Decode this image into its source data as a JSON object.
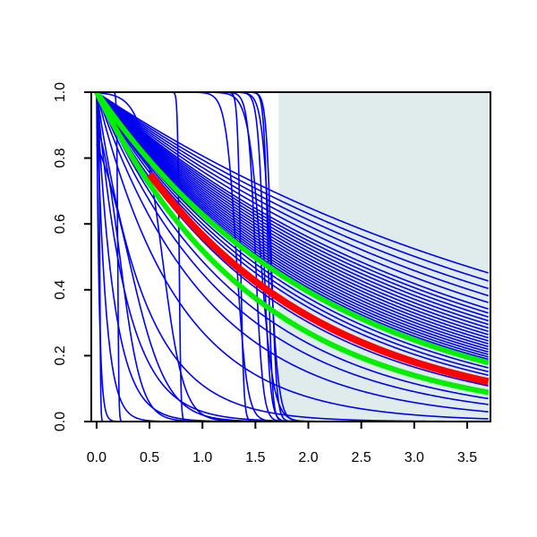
{
  "chart_data": {
    "type": "line",
    "title": "",
    "xlabel": "",
    "ylabel": "",
    "xlim": [
      -0.05,
      3.72
    ],
    "ylim": [
      0,
      1
    ],
    "x_ticks": [
      "0.0",
      "0.5",
      "1.0",
      "1.5",
      "2.0",
      "2.5",
      "3.0",
      "3.5"
    ],
    "y_ticks": [
      "0.0",
      "0.2",
      "0.4",
      "0.6",
      "0.8",
      "1.0"
    ],
    "shaded_region": {
      "x_from": 1.72,
      "x_to": 3.72,
      "y_from": 0,
      "y_to": 1,
      "color": "#e0ecec"
    },
    "colors": {
      "samples": "#0000ee",
      "band": "#00ee00",
      "estimate": "#ff0000"
    },
    "x": [
      0.0,
      0.1,
      0.2,
      0.3,
      0.4,
      0.5,
      0.6,
      0.7,
      0.8,
      0.9,
      1.0,
      1.1,
      1.2,
      1.3,
      1.4,
      1.5,
      1.6,
      1.7,
      1.8,
      1.9,
      2.0,
      2.1,
      2.2,
      2.3,
      2.4,
      2.5,
      2.6,
      2.7,
      2.8,
      2.9,
      3.0,
      3.1,
      3.2,
      3.3,
      3.4,
      3.5,
      3.6,
      3.7
    ],
    "sample_families": [
      {
        "name": "",
        "role": "samples",
        "kind": "exponential",
        "rates": [
          0.215,
          0.23,
          0.245,
          0.26,
          0.275,
          0.29,
          0.3,
          0.31,
          0.32,
          0.33,
          0.34,
          0.35,
          0.36,
          0.37,
          0.38,
          0.39,
          0.4,
          0.41,
          0.42,
          0.43,
          0.44,
          0.45,
          0.47,
          0.49,
          0.51,
          0.53,
          0.56,
          0.6,
          0.65,
          0.72,
          0.8,
          0.95,
          1.3
        ]
      },
      {
        "name": "",
        "role": "samples",
        "kind": "exponential",
        "rates": [
          2.2,
          3.5,
          6,
          12,
          40
        ]
      },
      {
        "name": "",
        "role": "samples",
        "kind": "weibull",
        "params": [
          [
            1.32,
            0.05
          ],
          [
            1.5,
            0.035
          ],
          [
            1.55,
            0.06
          ],
          [
            1.58,
            0.03
          ],
          [
            1.62,
            0.02
          ],
          [
            1.64,
            0.04
          ],
          [
            1.65,
            0.025
          ],
          [
            1.36,
            0.015
          ],
          [
            0.78,
            0.008
          ],
          [
            0.2,
            0.005
          ],
          [
            0.03,
            0.004
          ],
          [
            0.62,
            0.1
          ],
          [
            0.3,
            0.18
          ],
          [
            0.22,
            0.1
          ]
        ]
      }
    ],
    "series": [
      {
        "name": "",
        "role": "band",
        "kind": "exponential",
        "rate": 0.465
      },
      {
        "name": "",
        "role": "band",
        "kind": "exponential",
        "rate": 0.655
      },
      {
        "name": "",
        "role": "estimate",
        "kind": "exponential",
        "rate": 0.57,
        "x_from": 0.5
      }
    ]
  }
}
